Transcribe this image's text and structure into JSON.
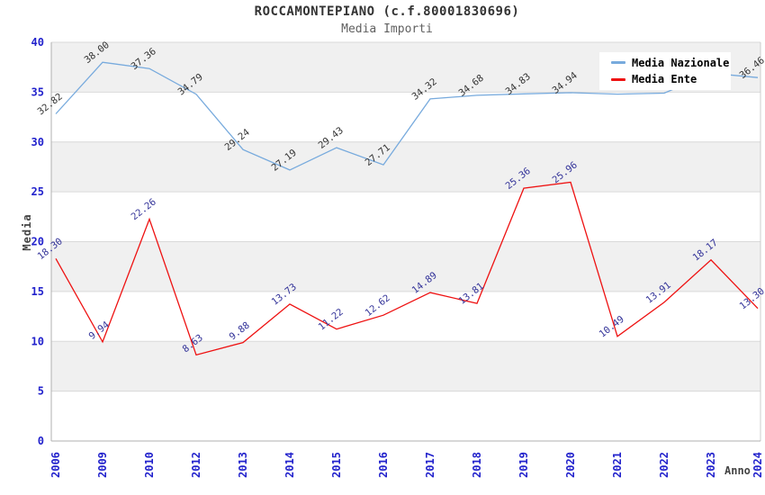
{
  "title": "ROCCAMONTEPIANO (c.f.80001830696)",
  "subtitle": "Media Importi",
  "legend": {
    "position": "top-right-overlay",
    "items": [
      {
        "label": "Media Nazionale",
        "color": "#77aadd"
      },
      {
        "label": "Media Ente",
        "color": "#ee1111"
      }
    ]
  },
  "axes": {
    "y_label": "Media",
    "x_label": "Anno",
    "tick_color": "#2222cc",
    "y_ticks": [
      0,
      5,
      10,
      15,
      20,
      25,
      30,
      35,
      40
    ]
  },
  "colors": {
    "band_gray": "#f0f0f0",
    "grid": "#d9d9d9",
    "axis": "#b0b0b0",
    "plot_border": "#cccccc"
  },
  "chart_data": {
    "type": "line",
    "title": "ROCCAMONTEPIANO (c.f.80001830696)",
    "subtitle": "Media Importi",
    "xlabel": "Anno",
    "ylabel": "Media",
    "ylim": [
      0,
      40
    ],
    "grid": "horizontal-bands",
    "legend_position": "top-right-overlay",
    "categories": [
      "2006",
      "2009",
      "2010",
      "2012",
      "2013",
      "2014",
      "2015",
      "2016",
      "2017",
      "2018",
      "2019",
      "2020",
      "2021",
      "2022",
      "2023",
      "2024"
    ],
    "series": [
      {
        "name": "Media Nazionale",
        "color": "#77aadd",
        "label_color": "#333333",
        "values": [
          32.82,
          38.0,
          37.36,
          34.79,
          29.24,
          27.19,
          29.43,
          27.71,
          34.32,
          34.68,
          34.83,
          34.94,
          34.8,
          34.9,
          36.9,
          36.46
        ],
        "point_labels": [
          "32.82",
          "38.00",
          "37.36",
          "34.79",
          "29.24",
          "27.19",
          "29.43",
          "27.71",
          "34.32",
          "34.68",
          "34.83",
          "34.94",
          null,
          null,
          null,
          "36.46"
        ]
      },
      {
        "name": "Media Ente",
        "color": "#ee1111",
        "label_color": "#333399",
        "values": [
          18.3,
          9.94,
          22.26,
          8.63,
          9.88,
          13.73,
          11.22,
          12.62,
          14.89,
          13.81,
          25.36,
          25.96,
          10.49,
          13.91,
          18.17,
          13.3
        ],
        "point_labels": [
          "18.30",
          "9.94",
          "22.26",
          "8.63",
          "9.88",
          "13.73",
          "11.22",
          "12.62",
          "14.89",
          "13.81",
          "25.36",
          "25.96",
          "10.49",
          "13.91",
          "18.17",
          "13.30"
        ]
      }
    ]
  }
}
